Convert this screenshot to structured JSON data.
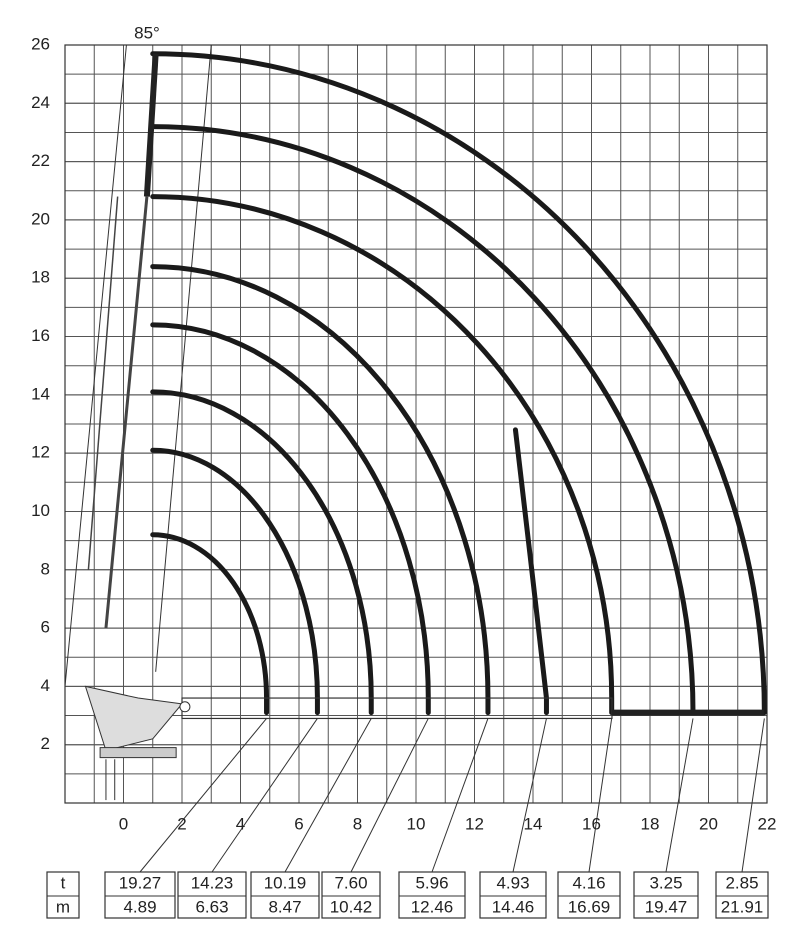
{
  "axes": {
    "xlim": [
      -2,
      22
    ],
    "ylim": [
      0,
      26
    ],
    "xticks": [
      0,
      2,
      4,
      6,
      8,
      10,
      12,
      14,
      16,
      18,
      20,
      22
    ],
    "yticks": [
      2,
      4,
      6,
      8,
      10,
      12,
      14,
      16,
      18,
      20,
      22,
      24,
      26
    ]
  },
  "angle_label": "85°",
  "table": {
    "row_labels": [
      "t",
      "m"
    ],
    "capacities": [
      "19.27",
      "14.23",
      "10.19",
      "7.60",
      "5.96",
      "4.93",
      "4.16",
      "3.25",
      "2.85"
    ],
    "reaches": [
      4.89,
      6.63,
      8.47,
      10.42,
      12.46,
      14.46,
      16.69,
      19.47,
      21.91
    ]
  }
}
